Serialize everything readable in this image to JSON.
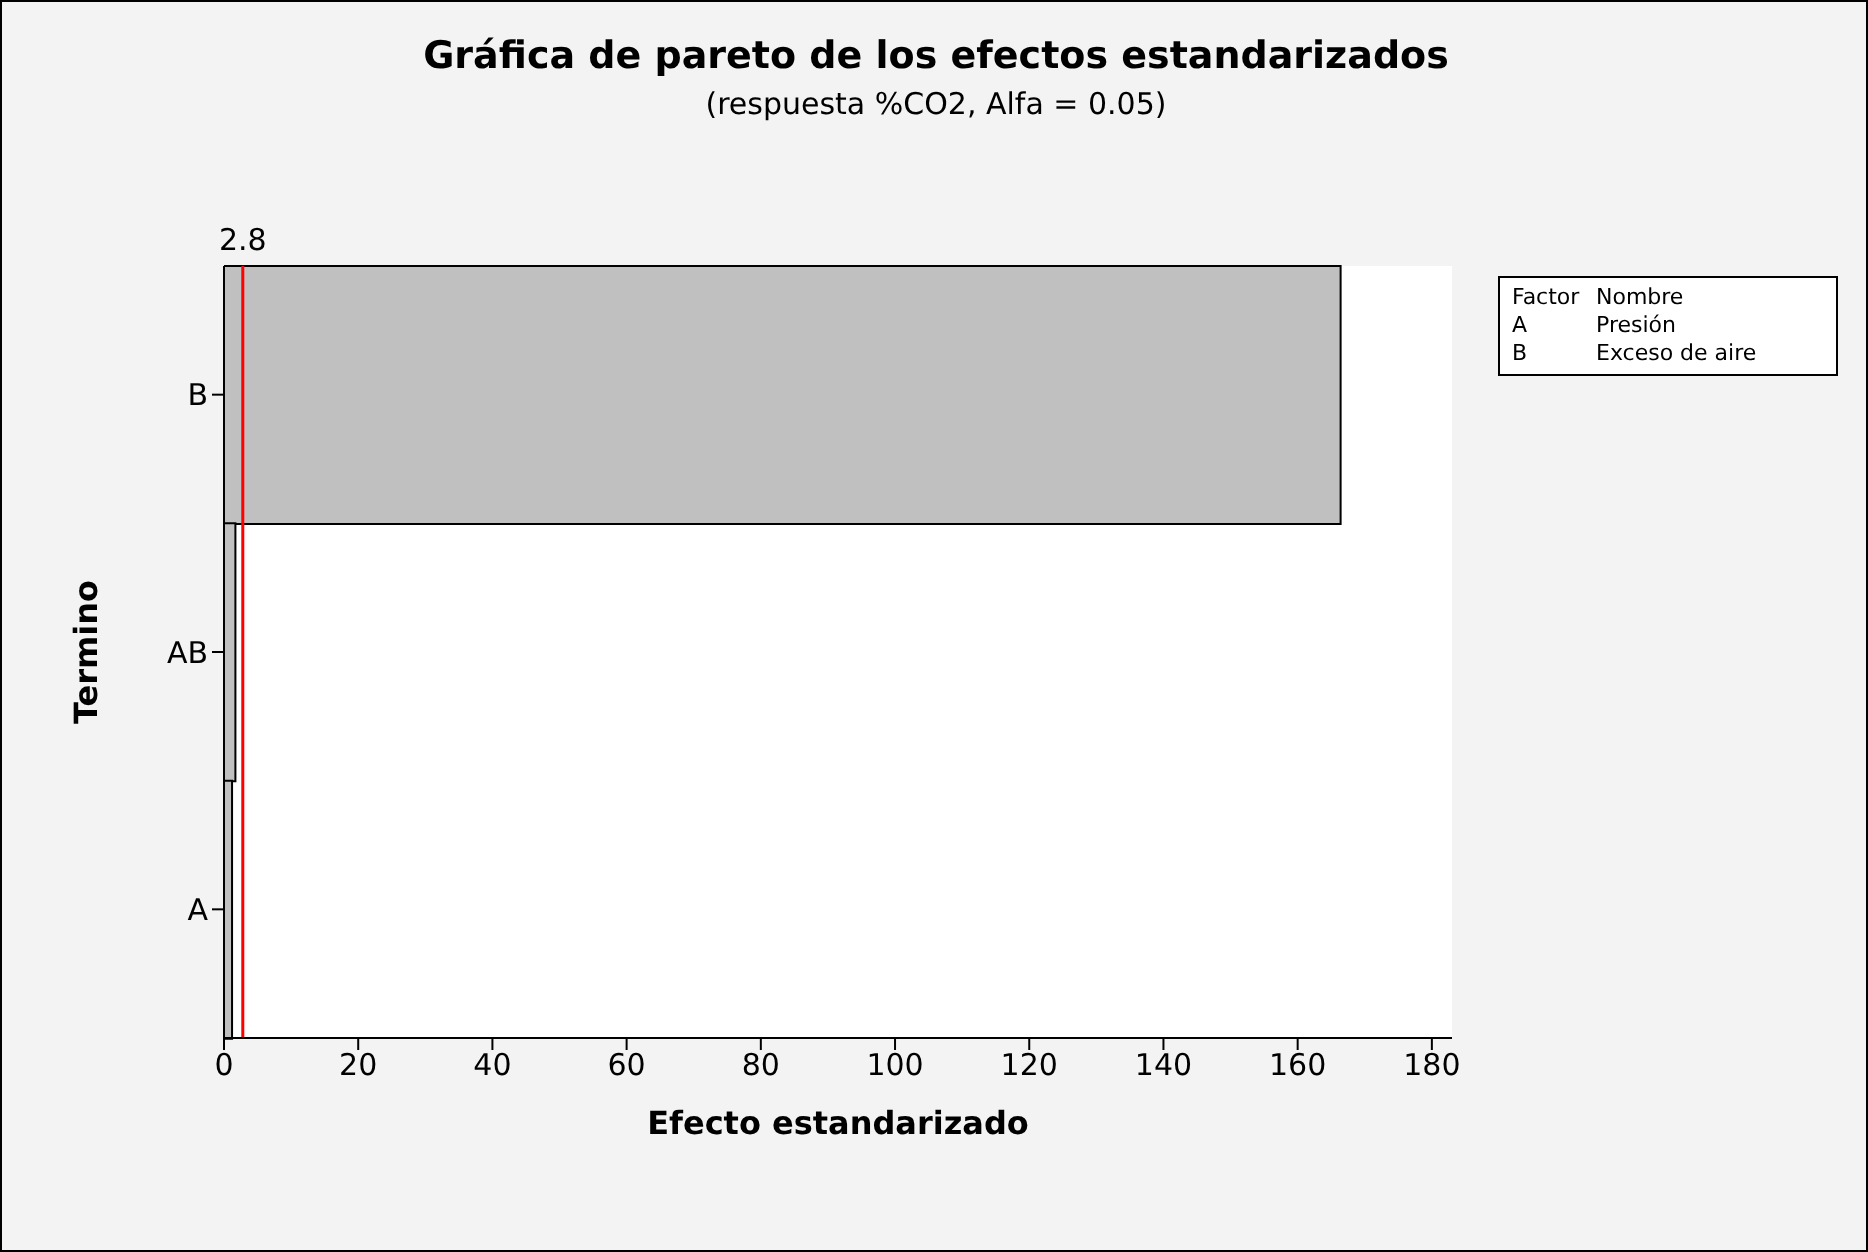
{
  "chart_data": {
    "type": "bar",
    "orientation": "horizontal",
    "title": "Gráfica de pareto de los efectos estandarizados",
    "subtitle": "(respuesta %CO2, Alfa = 0.05)",
    "xlabel": "Efecto estandarizado",
    "ylabel": "Termino",
    "categories": [
      "B",
      "AB",
      "A"
    ],
    "values": [
      166.4,
      1.7,
      1.2
    ],
    "color": "#c0c0c0",
    "xlim": [
      0,
      183
    ],
    "xticks": [
      0,
      20,
      40,
      60,
      80,
      100,
      120,
      140,
      160,
      180
    ],
    "ref_lines": [
      {
        "axis": "x",
        "value": 2.8,
        "label": "2.8",
        "color": "#ff0000"
      }
    ],
    "annotations": [
      "Factor",
      "Nombre",
      "A",
      "Presión",
      "B",
      "Exceso de aire"
    ],
    "legend": false
  }
}
